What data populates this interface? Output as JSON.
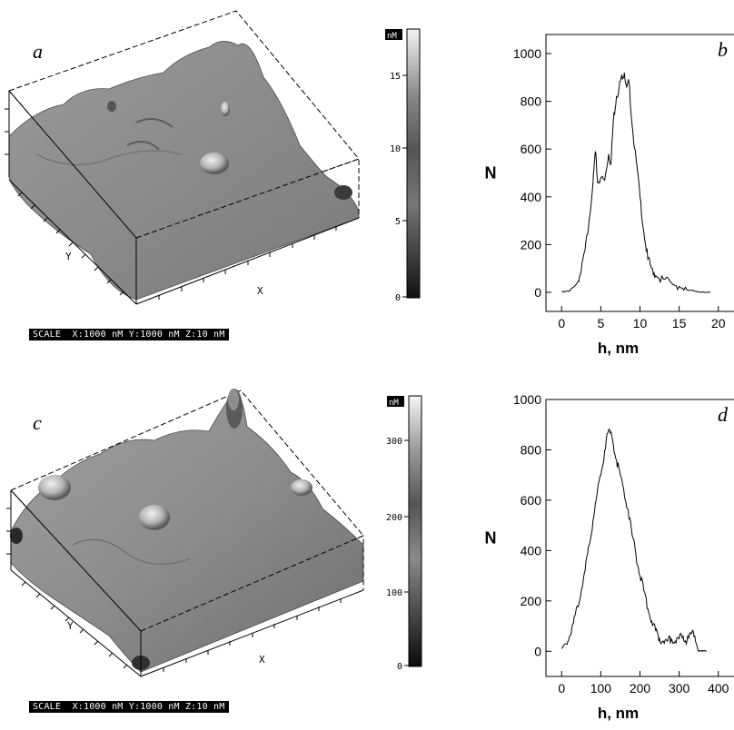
{
  "panels": {
    "a": {
      "letter": "a",
      "scale_label": "SCALE  X:1000 nM Y:1000 nM Z:10 nM",
      "colorbar_unit": "nM",
      "colorbar_ticks": [
        "0",
        "5",
        "10",
        "15"
      ],
      "axis_x": "X",
      "axis_y": "Y"
    },
    "c": {
      "letter": "c",
      "scale_label": "SCALE  X:1000 nM Y:1000 nM Z:10 nM",
      "colorbar_unit": "nM",
      "colorbar_ticks": [
        "0",
        "100",
        "200",
        "300"
      ],
      "axis_x": "X",
      "axis_y": "Y"
    }
  },
  "chart_data": [
    {
      "id": "b",
      "type": "line",
      "panel_letter": "b",
      "xlabel": "h, nm",
      "ylabel": "N",
      "xlim": [
        -2,
        22
      ],
      "ylim": [
        -80,
        1080
      ],
      "xticks": [
        0,
        5,
        10,
        15,
        20
      ],
      "yticks": [
        0,
        200,
        400,
        600,
        800,
        1000
      ],
      "series": [
        {
          "x": [
            0,
            1,
            2,
            2.5,
            3,
            3.5,
            4,
            4.3,
            4.6,
            5,
            5.5,
            6,
            6.3,
            6.6,
            7,
            7.3,
            7.6,
            8,
            8.3,
            8.6,
            9,
            9.5,
            10,
            10.5,
            11,
            11.5,
            12,
            13,
            14,
            15,
            16,
            17,
            18,
            19
          ],
          "y": [
            0,
            5,
            40,
            90,
            180,
            300,
            460,
            590,
            460,
            480,
            470,
            580,
            540,
            720,
            820,
            850,
            900,
            920,
            860,
            880,
            700,
            560,
            400,
            250,
            140,
            100,
            70,
            55,
            40,
            25,
            10,
            5,
            2,
            0
          ]
        }
      ]
    },
    {
      "id": "d",
      "type": "line",
      "panel_letter": "d",
      "xlabel": "h, nm",
      "ylabel": "N",
      "xlim": [
        -40,
        440
      ],
      "ylim": [
        -100,
        1000
      ],
      "xticks": [
        0,
        100,
        200,
        300,
        400
      ],
      "yticks": [
        0,
        200,
        400,
        600,
        800,
        1000
      ],
      "series": [
        {
          "x": [
            0,
            10,
            20,
            30,
            40,
            50,
            60,
            70,
            80,
            90,
            100,
            110,
            120,
            130,
            140,
            150,
            160,
            170,
            180,
            190,
            200,
            210,
            220,
            230,
            240,
            250,
            260,
            270,
            280,
            290,
            300,
            310,
            320,
            330,
            340,
            350,
            360,
            370
          ],
          "y": [
            10,
            30,
            60,
            110,
            180,
            240,
            320,
            420,
            520,
            620,
            700,
            800,
            880,
            840,
            760,
            700,
            620,
            560,
            460,
            380,
            300,
            240,
            170,
            120,
            80,
            50,
            40,
            40,
            50,
            40,
            50,
            60,
            40,
            70,
            60,
            0,
            0,
            0
          ]
        }
      ]
    }
  ]
}
